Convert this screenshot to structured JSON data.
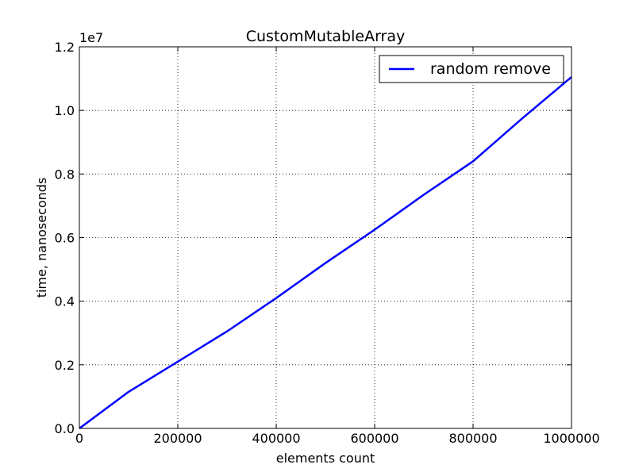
{
  "chart_data": {
    "type": "line",
    "title": "CustomMutableArray",
    "xlabel": "elements count",
    "ylabel": "time, nanoseconds",
    "y_multiplier_label": "1e7",
    "xlim": [
      0,
      1000000
    ],
    "ylim": [
      0,
      12000000
    ],
    "x_ticks": [
      0,
      200000,
      400000,
      600000,
      800000,
      1000000
    ],
    "x_tick_labels": [
      "0",
      "200000",
      "400000",
      "600000",
      "800000",
      "1000000"
    ],
    "y_ticks": [
      0,
      2000000,
      4000000,
      6000000,
      8000000,
      10000000,
      12000000
    ],
    "y_tick_labels": [
      "0.0",
      "0.2",
      "0.4",
      "0.6",
      "0.8",
      "1.0",
      "1.2"
    ],
    "grid": true,
    "legend_position": "top-right",
    "series": [
      {
        "name": "random remove",
        "color": "#0000ff",
        "x": [
          0,
          100000,
          300000,
          400000,
          500000,
          600000,
          700000,
          800000,
          900000,
          1000000
        ],
        "y": [
          0,
          1150000,
          3050000,
          4100000,
          5200000,
          6250000,
          7350000,
          8400000,
          9750000,
          11050000
        ]
      }
    ]
  }
}
